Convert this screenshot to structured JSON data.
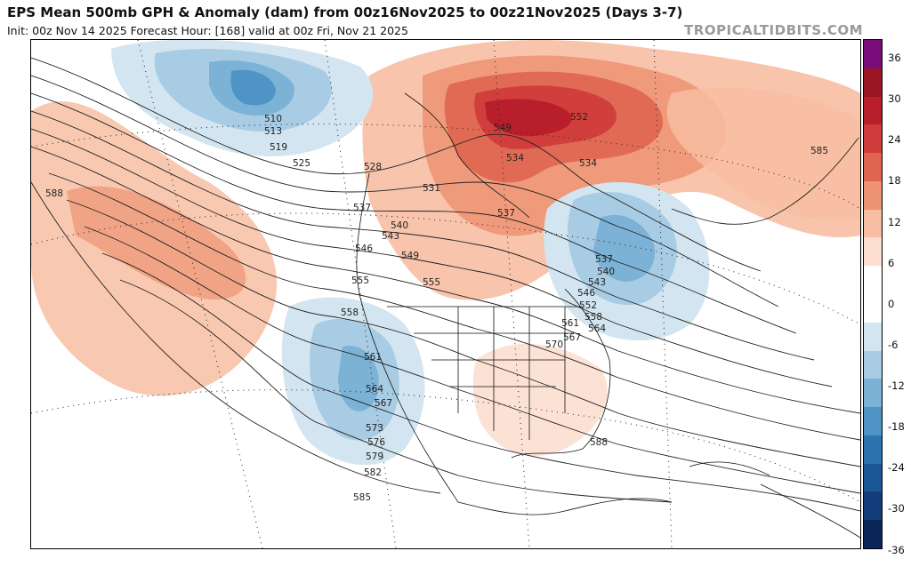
{
  "header": {
    "title": "EPS Mean 500mb GPH & Anomaly (dam) from 00z16Nov2025 to 00z21Nov2025 (Days 3-7)",
    "subtitle": "Init: 00z Nov 14 2025   Forecast Hour: [168]   valid at 00z Fri, Nov 21 2025",
    "site": "TROPICALTIDBITS.COM"
  },
  "colorbar": {
    "labels": [
      "36",
      "30",
      "24",
      "18",
      "12",
      "6",
      "0",
      "-6",
      "-12",
      "-18",
      "-24",
      "-30",
      "-36"
    ],
    "colors": [
      "#7a0d7a",
      "#991622",
      "#b81f2b",
      "#cf3b3a",
      "#df6550",
      "#ee9373",
      "#f7bea3",
      "#fcdfd0",
      "#ffffff",
      "#ffffff",
      "#d3e5f0",
      "#a8cce3",
      "#7cb2d5",
      "#4f94c6",
      "#2b74b0",
      "#1b5797",
      "#123d7a",
      "#0a2558"
    ]
  },
  "map": {
    "contour_labels": [
      "510",
      "513",
      "519",
      "525",
      "528",
      "534",
      "537",
      "537",
      "540",
      "543",
      "546",
      "549",
      "552",
      "555",
      "558",
      "561",
      "564",
      "567",
      "573",
      "576",
      "579",
      "582",
      "585",
      "588",
      "588",
      "585",
      "531",
      "534",
      "537",
      "540",
      "543",
      "546",
      "549",
      "552",
      "555",
      "558",
      "561",
      "564",
      "567",
      "570"
    ]
  }
}
